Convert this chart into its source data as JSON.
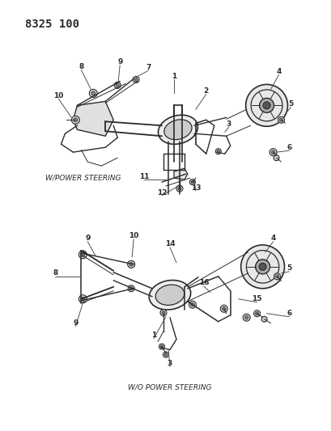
{
  "title": "8325 100",
  "bg": "#f5f5f0",
  "fg": "#1a1a1a",
  "title_fontsize": 10,
  "fig_width": 4.1,
  "fig_height": 5.33,
  "dpi": 100,
  "label_w_power": "W/POWER STEERING",
  "label_wo_power": "W/O POWER STEERING",
  "top_labels": [
    [
      "1",
      215,
      105
    ],
    [
      "2",
      248,
      125
    ],
    [
      "3",
      278,
      158
    ],
    [
      "4",
      340,
      95
    ],
    [
      "5",
      355,
      130
    ],
    [
      "6",
      355,
      185
    ],
    [
      "7",
      183,
      88
    ],
    [
      "8",
      100,
      88
    ],
    [
      "9",
      148,
      82
    ],
    [
      "10",
      82,
      118
    ],
    [
      "11",
      175,
      212
    ],
    [
      "12",
      205,
      235
    ],
    [
      "13",
      240,
      230
    ]
  ],
  "bottom_labels": [
    [
      "1",
      195,
      415
    ],
    [
      "3",
      210,
      450
    ],
    [
      "4",
      335,
      300
    ],
    [
      "5",
      358,
      335
    ],
    [
      "6",
      358,
      390
    ],
    [
      "8",
      72,
      340
    ],
    [
      "9",
      110,
      300
    ],
    [
      "9",
      98,
      395
    ],
    [
      "10",
      168,
      295
    ],
    [
      "14",
      210,
      305
    ],
    [
      "15",
      318,
      375
    ],
    [
      "16",
      255,
      355
    ]
  ]
}
